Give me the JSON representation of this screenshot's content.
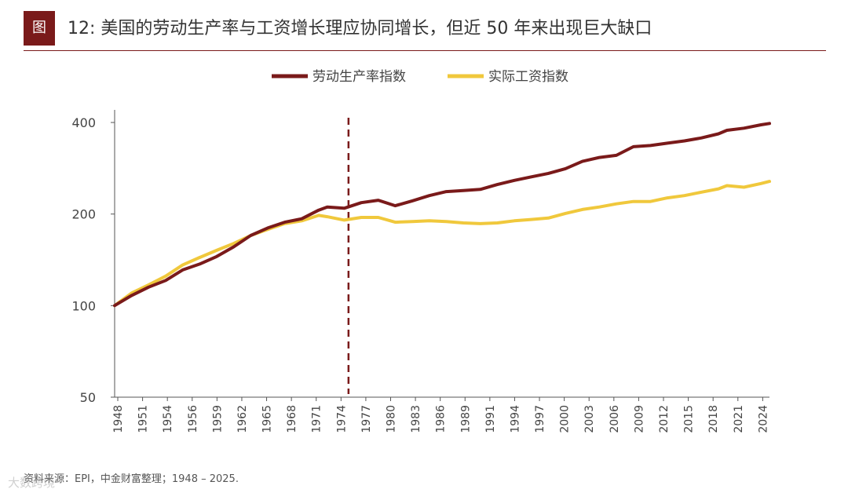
{
  "header": {
    "figure_tag": "图",
    "title": "12: 美国的劳动生产率与工资增长理应协同增长，但近 50 年来出现巨大缺口"
  },
  "source_note": "资料来源：EPI，中金财富整理；1948 – 2025.",
  "watermark": "大数跨境",
  "colors": {
    "productivity": "#7a1a1a",
    "wages": "#f0c83c",
    "accent": "#7a1a1a",
    "marker": "#7a1a1a"
  },
  "chart_data": {
    "type": "line",
    "title": "",
    "xlabel": "",
    "ylabel": "",
    "y_scale": "log",
    "ylim": [
      50,
      440
    ],
    "xlim": [
      1948,
      2025
    ],
    "y_ticks": [
      50,
      100,
      200,
      400
    ],
    "y_tick_labels": [
      "50",
      "100",
      "200",
      "400"
    ],
    "x_tick_labels": [
      "1948",
      "1951",
      "1954",
      "1956",
      "1959",
      "1962",
      "1965",
      "1968",
      "1971",
      "1974",
      "1977",
      "1980",
      "1983",
      "1986",
      "1989",
      "1991",
      "1994",
      "1997",
      "2000",
      "2003",
      "2006",
      "2009",
      "2012",
      "2015",
      "2018",
      "2021",
      "2024"
    ],
    "legend": {
      "position": "top-center",
      "entries": [
        "劳动生产率指数",
        "实际工资指数"
      ]
    },
    "vertical_marker": {
      "x": 1975.5,
      "style": "dashed"
    },
    "x": [
      1948,
      1950,
      1952,
      1954,
      1956,
      1958,
      1960,
      1962,
      1964,
      1966,
      1968,
      1970,
      1972,
      1973,
      1975,
      1977,
      1979,
      1981,
      1983,
      1985,
      1987,
      1989,
      1991,
      1993,
      1995,
      1997,
      1999,
      2001,
      2003,
      2005,
      2007,
      2009,
      2011,
      2013,
      2015,
      2017,
      2019,
      2020,
      2022,
      2024,
      2025
    ],
    "series": [
      {
        "name": "劳动生产率指数",
        "values": [
          100,
          108,
          115,
          121,
          131,
          137,
          145,
          156,
          170,
          180,
          188,
          193,
          206,
          211,
          209,
          218,
          222,
          213,
          221,
          230,
          237,
          239,
          241,
          250,
          258,
          265,
          272,
          282,
          298,
          307,
          312,
          333,
          336,
          342,
          348,
          356,
          367,
          377,
          383,
          393,
          397
        ]
      },
      {
        "name": "实际工资指数",
        "values": [
          100,
          110,
          117,
          125,
          136,
          144,
          152,
          160,
          170,
          178,
          186,
          190,
          198,
          196,
          191,
          195,
          195,
          188,
          189,
          190,
          189,
          187,
          186,
          187,
          190,
          192,
          194,
          201,
          207,
          211,
          216,
          220,
          220,
          226,
          230,
          236,
          242,
          248,
          245,
          252,
          256
        ]
      }
    ]
  }
}
